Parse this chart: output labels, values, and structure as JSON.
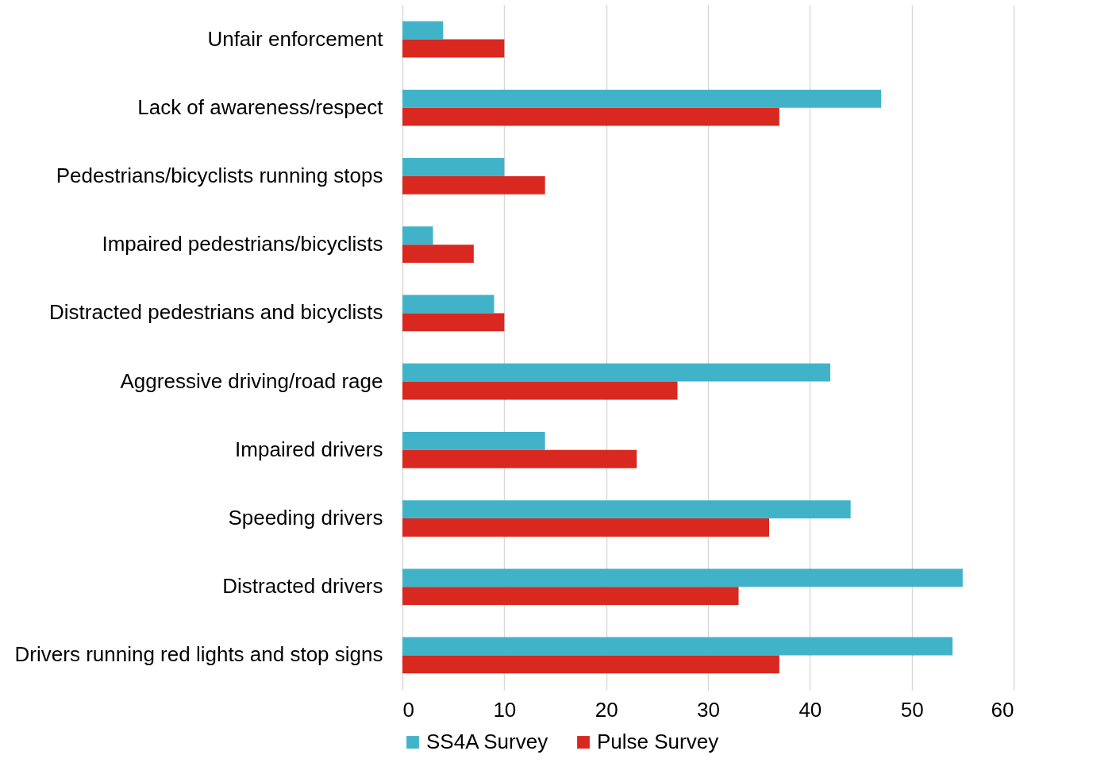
{
  "chart_data": {
    "type": "bar",
    "orientation": "horizontal",
    "categories": [
      "Unfair enforcement",
      "Lack of awareness/respect",
      "Pedestrians/bicyclists running stops",
      "Impaired pedestrians/bicyclists",
      "Distracted pedestrians and bicyclists",
      "Aggressive driving/road rage",
      "Impaired drivers",
      "Speeding drivers",
      "Distracted drivers",
      "Drivers running red lights and stop signs"
    ],
    "series": [
      {
        "name": "SS4A Survey",
        "color": "#41b3c9",
        "values": [
          4,
          47,
          10,
          3,
          9,
          42,
          14,
          44,
          55,
          54
        ]
      },
      {
        "name": "Pulse Survey",
        "color": "#d9281f",
        "values": [
          10,
          37,
          14,
          7,
          10,
          27,
          23,
          36,
          33,
          37
        ]
      }
    ],
    "xlim": [
      0,
      60
    ],
    "xticks": [
      0,
      10,
      20,
      30,
      40,
      50,
      60
    ],
    "grid": "x",
    "legend": "bottom"
  }
}
